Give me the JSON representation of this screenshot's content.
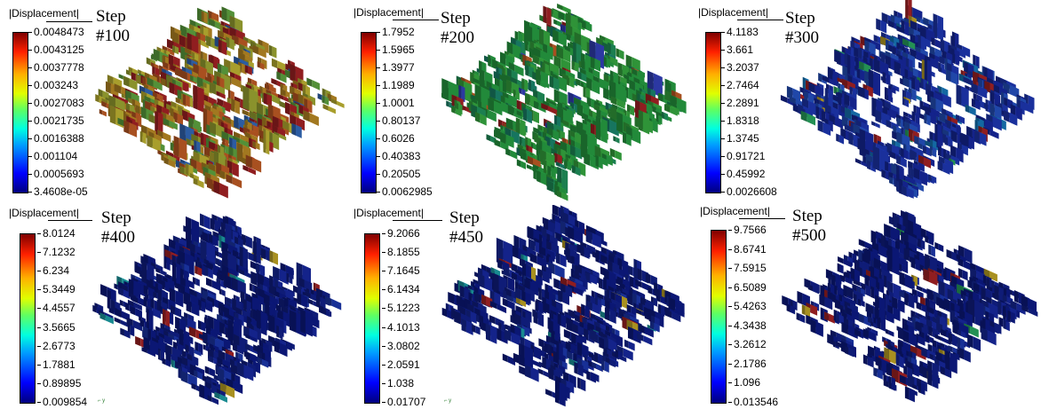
{
  "legend_title": "|Displacement|",
  "panels": [
    {
      "step_word": "Step",
      "step_num": "#100",
      "ticks": [
        "0.0048473",
        "0.0043125",
        "0.0037778",
        "0.003243",
        "0.0027083",
        "0.0021735",
        "0.0016388",
        "0.001104",
        "0.0005693",
        "3.4608e-05"
      ],
      "palette": [
        "#c0282a",
        "#e06a2a",
        "#d8a02a",
        "#b8c23a",
        "#e0d23a",
        "#6ec04a",
        "#3a7ad8"
      ],
      "weights": [
        0.22,
        0.2,
        0.18,
        0.12,
        0.12,
        0.1,
        0.06
      ]
    },
    {
      "step_word": "Step",
      "step_num": "#200",
      "ticks": [
        "1.7952",
        "1.5965",
        "1.3977",
        "1.1989",
        "1.0001",
        "0.80137",
        "0.6026",
        "0.40383",
        "0.20505",
        "0.0062985"
      ],
      "palette": [
        "#2db84d",
        "#3fc44a",
        "#25a96a",
        "#1e9c7e",
        "#c0282a",
        "#3a4ad8",
        "#e06a2a"
      ],
      "weights": [
        0.4,
        0.3,
        0.12,
        0.08,
        0.05,
        0.03,
        0.02
      ]
    },
    {
      "step_word": "Step",
      "step_num": "#300",
      "ticks": [
        "4.1183",
        "3.661",
        "3.2037",
        "2.7464",
        "2.2891",
        "1.8318",
        "1.3745",
        "0.91721",
        "0.45992",
        "0.0026608"
      ],
      "palette": [
        "#1a2fb8",
        "#2340d0",
        "#2a5ee0",
        "#1a8ad8",
        "#c0282a",
        "#e0c02a",
        "#30c070"
      ],
      "weights": [
        0.42,
        0.3,
        0.14,
        0.06,
        0.04,
        0.02,
        0.02
      ]
    },
    {
      "step_word": "Step",
      "step_num": "#400",
      "ticks": [
        "8.0124",
        "7.1232",
        "6.234",
        "5.3449",
        "4.4557",
        "3.5665",
        "2.6773",
        "1.7881",
        "0.89895",
        "0.009854"
      ],
      "palette": [
        "#0f1f9a",
        "#14259e",
        "#1a2fb8",
        "#2040c8",
        "#c0282a",
        "#20b8c0",
        "#e0c02a"
      ],
      "weights": [
        0.45,
        0.3,
        0.14,
        0.05,
        0.03,
        0.02,
        0.01
      ]
    },
    {
      "step_word": "Step",
      "step_num": "#450",
      "ticks": [
        "9.2066",
        "8.1855",
        "7.1645",
        "6.1434",
        "5.1223",
        "4.1013",
        "3.0802",
        "2.0591",
        "1.038",
        "0.01707"
      ],
      "palette": [
        "#0f1f9a",
        "#14259e",
        "#1a2fb8",
        "#2040c8",
        "#c0282a",
        "#e0c02a",
        "#20b8c0"
      ],
      "weights": [
        0.45,
        0.3,
        0.13,
        0.05,
        0.03,
        0.02,
        0.02
      ]
    },
    {
      "step_word": "Step",
      "step_num": "#500",
      "ticks": [
        "9.7566",
        "8.6741",
        "7.5915",
        "6.5089",
        "5.4263",
        "4.3438",
        "3.2612",
        "2.1786",
        "1.096",
        "0.013546"
      ],
      "palette": [
        "#0f1f9a",
        "#14259e",
        "#1a2fb8",
        "#2040c8",
        "#c0282a",
        "#e0c02a",
        "#30c070"
      ],
      "weights": [
        0.46,
        0.3,
        0.13,
        0.05,
        0.03,
        0.02,
        0.01
      ]
    }
  ]
}
